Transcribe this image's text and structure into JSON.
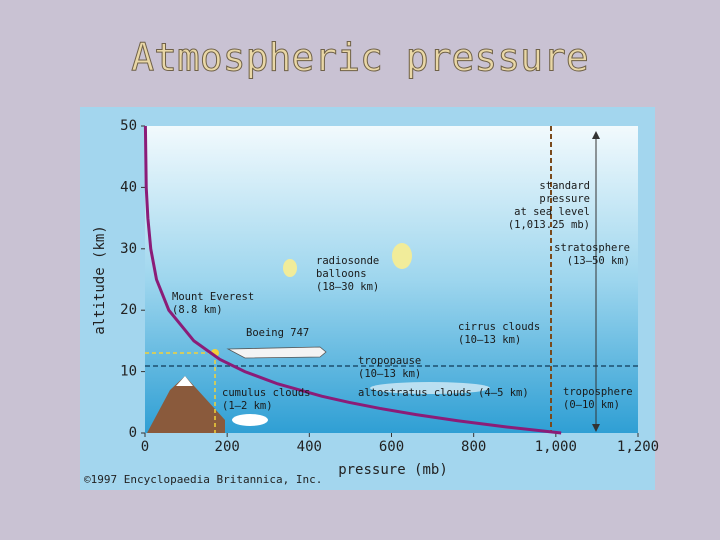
{
  "chart_data": {
    "type": "line",
    "title": "Atmospheric pressure",
    "x_label": "pressure (mb)",
    "y_label": "altitude (km)",
    "credit": "©1997 Encyclopaedia Britannica, Inc.",
    "x": [
      1013,
      878,
      761,
      660,
      572,
      496,
      430,
      323,
      243,
      182,
      119,
      58,
      28,
      14,
      7,
      3,
      2,
      1
    ],
    "values": [
      0,
      1,
      2,
      3,
      4,
      5,
      6,
      8,
      10,
      12,
      15,
      20,
      25,
      30,
      35,
      40,
      45,
      50
    ],
    "color": "#8b1c78",
    "xlim": [
      0,
      1200
    ],
    "ylim": [
      0,
      50
    ],
    "xticks": [
      0,
      200,
      400,
      600,
      800,
      {
        "value": 1000,
        "label": "1,000"
      },
      {
        "value": 1200,
        "label": "1,200"
      }
    ],
    "yticks": [
      0,
      10,
      20,
      30,
      40,
      50
    ],
    "annotations": [
      {
        "lines": [
          "standard",
          "pressure",
          "at sea level",
          "(1,013.25 mb)"
        ]
      },
      {
        "lines": [
          "stratosphere",
          "(13–50 km)"
        ]
      },
      {
        "lines": [
          "radiosonde",
          "balloons",
          "(18–30 km)"
        ]
      },
      {
        "lines": [
          "Mount Everest",
          "(8.8 km)"
        ]
      },
      {
        "lines": [
          "Boeing 747"
        ]
      },
      {
        "lines": [
          "cirrus clouds",
          "(10–13 km)"
        ]
      },
      {
        "lines": [
          "tropopause",
          "(10–13 km)"
        ]
      },
      {
        "lines": [
          "cumulus clouds",
          "(1–2 km)"
        ]
      },
      {
        "lines": [
          "altostratus clouds (4–5 km)"
        ]
      },
      {
        "lines": [
          "troposphere",
          "(0–10 km)"
        ]
      }
    ]
  }
}
